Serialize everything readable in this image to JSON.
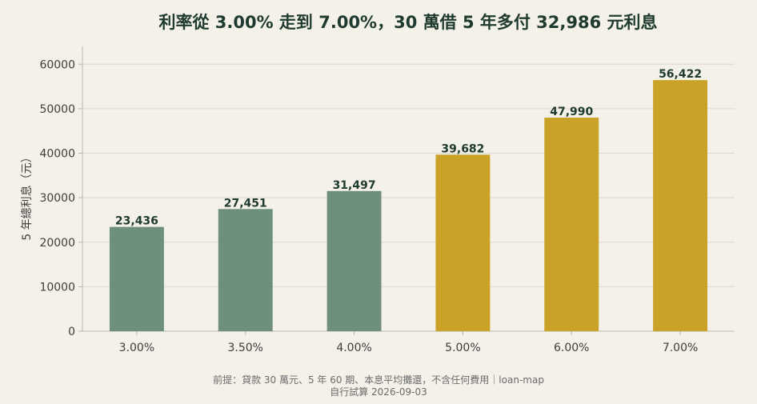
{
  "chart_data": {
    "type": "bar",
    "title": "利率從 3.00% 走到 7.00%，30 萬借 5 年多付 32,986 元利息",
    "ylabel": "5 年總利息（元）",
    "xlabel": "",
    "categories": [
      "3.00%",
      "3.50%",
      "4.00%",
      "5.00%",
      "6.00%",
      "7.00%"
    ],
    "values": [
      23436,
      27451,
      31497,
      39682,
      47990,
      56422
    ],
    "value_labels": [
      "23,436",
      "27,451",
      "31,497",
      "39,682",
      "47,990",
      "56,422"
    ],
    "ylim": [
      0,
      64000
    ],
    "yticks": [
      0,
      10000,
      20000,
      30000,
      40000,
      50000,
      60000
    ],
    "ytick_labels": [
      "0",
      "10000",
      "20000",
      "30000",
      "40000",
      "50000",
      "60000"
    ],
    "grid": true,
    "bar_colors": [
      "#6e8f7c",
      "#6e8f7c",
      "#6e8f7c",
      "#c9a227",
      "#c9a227",
      "#c9a227"
    ],
    "footnote_line1": "前提：貸款 30 萬元、5 年 60 期、本息平均攤還，不含任何費用｜loan-map",
    "footnote_line2": "自行試算 2026-09-03"
  },
  "colors": {
    "background": "#f4f1e9",
    "grid": "#dcd8cd",
    "axis": "#b9b6ad",
    "title": "#1f3a2e"
  }
}
